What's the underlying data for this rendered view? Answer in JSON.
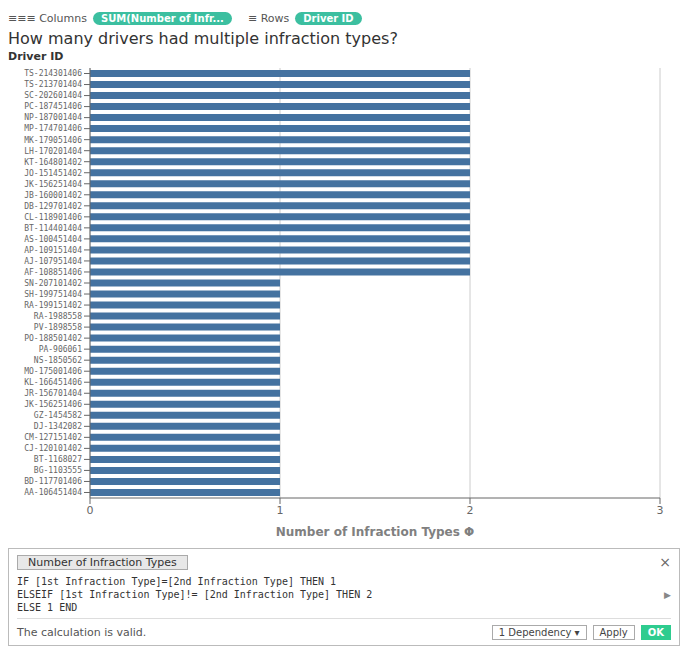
{
  "chart_data": {
    "type": "bar",
    "orientation": "horizontal",
    "title": "How many drivers had multiple infraction types?",
    "xlabel": "Number of Infraction Types Φ",
    "ylabel": "Driver ID",
    "categories": [
      "TS-214301406",
      "TS-213701404",
      "SC-202601404",
      "PC-187451406",
      "NP-187001404",
      "MP-174701406",
      "MK-179051406",
      "LH-170201404",
      "KT-164801402",
      "JO-151451402",
      "JK-156251404",
      "JB-160001402",
      "DB-129701402",
      "CL-118901406",
      "BT-114401404",
      "AS-100451404",
      "AP-109151404",
      "AJ-107951404",
      "AF-108851406",
      "SN-207101402",
      "SH-199751404",
      "RA-199151402",
      "RA-1988558",
      "PV-1898558",
      "PO-188501402",
      "PA-906061",
      "NS-1850562",
      "MO-175001406",
      "KL-166451406",
      "JR-156701404",
      "JK-156251406",
      "GZ-1454582",
      "DJ-1342082",
      "CM-127151402",
      "CJ-120101402",
      "BT-1168027",
      "BG-1103555",
      "BD-117701406",
      "AA-106451404"
    ],
    "values": [
      2,
      2,
      2,
      2,
      2,
      2,
      2,
      2,
      2,
      2,
      2,
      2,
      2,
      2,
      2,
      2,
      2,
      2,
      2,
      1,
      1,
      1,
      1,
      1,
      1,
      1,
      1,
      1,
      1,
      1,
      1,
      1,
      1,
      1,
      1,
      1,
      1,
      1,
      1
    ],
    "color": "#4472a0",
    "xlim": [
      0,
      3
    ],
    "xticks": [
      0,
      1,
      2,
      3
    ],
    "grid": true,
    "annotations": [
      "≡≡≡ Columns",
      "SUM(Number of Infr...",
      "≡  Rows",
      "Driver ID",
      "Number of Infraction Types",
      "×",
      "IF [1st Infraction Type]=[2nd Infraction Type] THEN 1",
      "ELSEIF [1st Infraction Type]!= [2nd Infraction Type] THEN 2",
      "ELSE 1 END",
      "▶",
      "The calculation is valid.",
      "1 Dependency ▾",
      "Apply",
      "OK"
    ]
  }
}
